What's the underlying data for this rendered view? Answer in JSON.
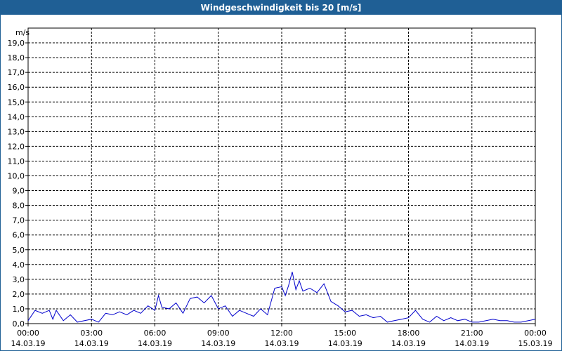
{
  "header": {
    "title": "Windgeschwindigkeit bis 20 [m/s]"
  },
  "colors": {
    "title_bar": "#1f5f95",
    "series": "#0000cc",
    "grid": "#000000",
    "background": "#ffffff"
  },
  "chart_data": {
    "type": "line",
    "title": "Windgeschwindigkeit bis 20 [m/s]",
    "ylabel": "m/s",
    "xlabel": "",
    "ylim": [
      0,
      20
    ],
    "y_ticks": [
      "0,0",
      "1,0",
      "2,0",
      "3,0",
      "4,0",
      "5,0",
      "6,0",
      "7,0",
      "8,0",
      "9,0",
      "10,0",
      "11,0",
      "12,0",
      "13,0",
      "14,0",
      "15,0",
      "16,0",
      "17,0",
      "18,0",
      "19,0"
    ],
    "x_ticks": [
      {
        "time": "00:00",
        "date": "14.03.19"
      },
      {
        "time": "03:00",
        "date": "14.03.19"
      },
      {
        "time": "06:00",
        "date": "14.03.19"
      },
      {
        "time": "09:00",
        "date": "14.03.19"
      },
      {
        "time": "12:00",
        "date": "14.03.19"
      },
      {
        "time": "15:00",
        "date": "14.03.19"
      },
      {
        "time": "18:00",
        "date": "14.03.19"
      },
      {
        "time": "21:00",
        "date": "14.03.19"
      },
      {
        "time": "00:00",
        "date": "15.03.19"
      }
    ],
    "grid": true,
    "legend": "none",
    "x_unit": "hours from 14.03.19 00:00",
    "series": [
      {
        "name": "",
        "x": [
          0.0,
          0.33,
          0.67,
          1.0,
          1.17,
          1.33,
          1.67,
          2.0,
          2.33,
          2.67,
          3.0,
          3.33,
          3.67,
          4.0,
          4.33,
          4.67,
          5.0,
          5.33,
          5.67,
          6.0,
          6.17,
          6.33,
          6.67,
          7.0,
          7.33,
          7.67,
          8.0,
          8.33,
          8.67,
          9.0,
          9.33,
          9.67,
          10.0,
          10.33,
          10.67,
          11.0,
          11.33,
          11.67,
          12.0,
          12.17,
          12.33,
          12.5,
          12.67,
          12.83,
          13.0,
          13.33,
          13.67,
          14.0,
          14.33,
          14.67,
          15.0,
          15.33,
          15.67,
          16.0,
          16.33,
          16.67,
          17.0,
          17.33,
          17.67,
          18.0,
          18.33,
          18.67,
          19.0,
          19.33,
          19.67,
          20.0,
          20.33,
          20.67,
          21.0,
          21.33,
          21.67,
          22.0,
          22.33,
          22.67,
          23.0,
          23.33,
          23.67,
          24.0
        ],
        "y": [
          0.2,
          0.9,
          0.7,
          0.9,
          0.3,
          0.9,
          0.2,
          0.6,
          0.1,
          0.2,
          0.3,
          0.1,
          0.7,
          0.6,
          0.8,
          0.6,
          0.9,
          0.7,
          1.2,
          0.9,
          1.9,
          1.1,
          1.0,
          1.4,
          0.7,
          1.7,
          1.8,
          1.4,
          1.9,
          1.0,
          1.2,
          0.5,
          0.9,
          0.7,
          0.5,
          1.0,
          0.6,
          2.4,
          2.5,
          1.9,
          2.6,
          3.5,
          2.3,
          2.9,
          2.2,
          2.4,
          2.1,
          2.7,
          1.5,
          1.2,
          0.8,
          0.9,
          0.5,
          0.6,
          0.4,
          0.5,
          0.1,
          0.2,
          0.3,
          0.4,
          0.9,
          0.3,
          0.1,
          0.5,
          0.2,
          0.4,
          0.2,
          0.3,
          0.1,
          0.1,
          0.2,
          0.3,
          0.2,
          0.2,
          0.1,
          0.1,
          0.2,
          0.3
        ]
      }
    ]
  }
}
